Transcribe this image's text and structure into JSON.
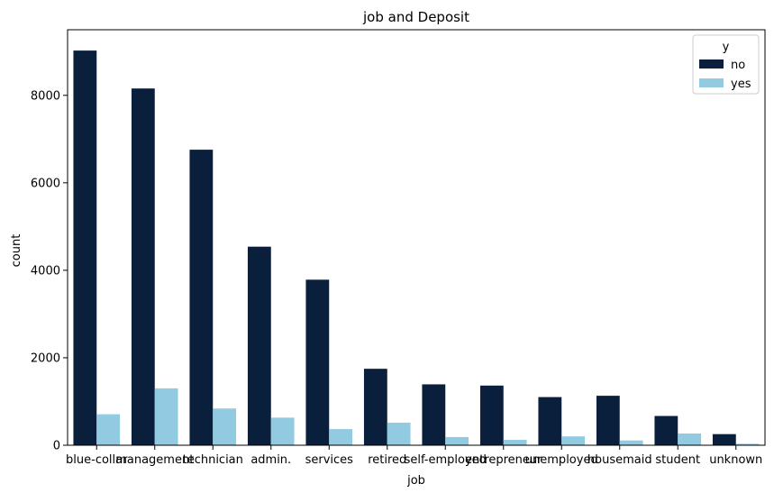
{
  "chart_data": {
    "type": "bar",
    "title": "job and Deposit",
    "xlabel": "job",
    "ylabel": "count",
    "ylim": [
      0,
      9500
    ],
    "yticks": [
      0,
      2000,
      4000,
      6000,
      8000
    ],
    "grid": false,
    "legend": {
      "title": "y",
      "position": "top-right"
    },
    "categories": [
      "blue-collar",
      "management",
      "technician",
      "admin.",
      "services",
      "retired",
      "self-employed",
      "entrepreneur",
      "unemployed",
      "housemaid",
      "student",
      "unknown"
    ],
    "series": [
      {
        "name": "no",
        "color": "#0a1f3c",
        "values": [
          9024,
          8157,
          6757,
          4540,
          3785,
          1748,
          1392,
          1364,
          1101,
          1131,
          669,
          254
        ]
      },
      {
        "name": "yes",
        "color": "#92cae1",
        "values": [
          708,
          1301,
          840,
          631,
          369,
          516,
          187,
          123,
          202,
          109,
          269,
          34
        ]
      }
    ]
  }
}
